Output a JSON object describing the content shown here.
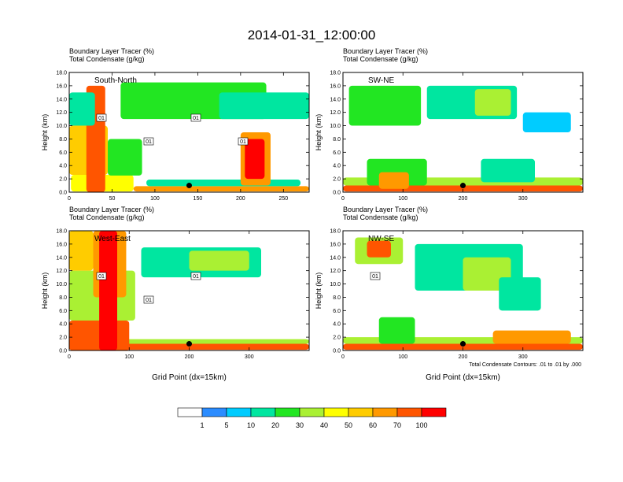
{
  "figure_title": "2014-01-31_12:00:00",
  "chart_data": [
    {
      "type": "heatmap",
      "label": "South-North",
      "subtitle_lines": [
        "Boundary Layer Tracer    (%)",
        "Total Condensate    (g/kg)"
      ],
      "ylabel": "Height (km)",
      "xlabel": "",
      "xlim": [
        0,
        280
      ],
      "ylim": [
        0,
        18
      ],
      "xticks": [
        0,
        50,
        100,
        150,
        200,
        250
      ],
      "yticks": [
        0,
        2,
        4,
        6,
        8,
        10,
        12,
        14,
        16,
        18
      ],
      "ytick_labels": [
        "0.0",
        "2.0",
        "4.0",
        "6.0",
        "8.0",
        "10.0",
        "12.0",
        "14.0",
        "16.0",
        "18.0"
      ],
      "marker": {
        "x": 140,
        "y": 1.0
      },
      "contour_labels": [
        "01",
        "01",
        "01",
        "01"
      ],
      "tracer_regions": [
        {
          "x": [
            2,
            75
          ],
          "y": [
            0.1,
            2.6
          ],
          "level": 6
        },
        {
          "x": [
            75,
            280
          ],
          "y": [
            0.1,
            0.9
          ],
          "level": 8
        },
        {
          "x": [
            90,
            270
          ],
          "y": [
            0.9,
            1.9
          ],
          "level": 3
        },
        {
          "x": [
            0,
            45
          ],
          "y": [
            2.6,
            10
          ],
          "level": 7
        },
        {
          "x": [
            20,
            42
          ],
          "y": [
            0,
            16
          ],
          "level": 9
        },
        {
          "x": [
            0,
            30
          ],
          "y": [
            10,
            15
          ],
          "level": 3
        },
        {
          "x": [
            45,
            85
          ],
          "y": [
            2.5,
            8
          ],
          "level": 4
        },
        {
          "x": [
            60,
            230
          ],
          "y": [
            11,
            16.5
          ],
          "level": 4
        },
        {
          "x": [
            175,
            280
          ],
          "y": [
            11,
            15
          ],
          "level": 3
        },
        {
          "x": [
            200,
            235
          ],
          "y": [
            1,
            9
          ],
          "level": 8
        },
        {
          "x": [
            205,
            228
          ],
          "y": [
            2,
            8
          ],
          "level": 10
        }
      ]
    },
    {
      "type": "heatmap",
      "label": "SW-NE",
      "subtitle_lines": [
        "Boundary Layer Tracer    (%)",
        "Total Condensate    (g/kg)"
      ],
      "ylabel": "Height (km)",
      "xlabel": "",
      "xlim": [
        0,
        400
      ],
      "ylim": [
        0,
        18
      ],
      "xticks": [
        0,
        100,
        200,
        300
      ],
      "yticks": [
        0,
        2,
        4,
        6,
        8,
        10,
        12,
        14,
        16,
        18
      ],
      "ytick_labels": [
        "0.0",
        "2.0",
        "4.0",
        "6.0",
        "8.0",
        "10.0",
        "12.0",
        "14.0",
        "16.0",
        "18.0"
      ],
      "marker": {
        "x": 200,
        "y": 1.0
      },
      "contour_labels": [],
      "tracer_regions": [
        {
          "x": [
            0,
            400
          ],
          "y": [
            0.1,
            1.0
          ],
          "level": 9
        },
        {
          "x": [
            0,
            400
          ],
          "y": [
            1.0,
            2.2
          ],
          "level": 5
        },
        {
          "x": [
            40,
            140
          ],
          "y": [
            1,
            5
          ],
          "level": 4
        },
        {
          "x": [
            60,
            110
          ],
          "y": [
            0.5,
            3
          ],
          "level": 8
        },
        {
          "x": [
            230,
            320
          ],
          "y": [
            1.5,
            5
          ],
          "level": 3
        },
        {
          "x": [
            10,
            130
          ],
          "y": [
            10,
            16
          ],
          "level": 4
        },
        {
          "x": [
            140,
            290
          ],
          "y": [
            11,
            16
          ],
          "level": 3
        },
        {
          "x": [
            220,
            280
          ],
          "y": [
            11.5,
            15.5
          ],
          "level": 5
        },
        {
          "x": [
            300,
            380
          ],
          "y": [
            9,
            12
          ],
          "level": 2
        }
      ]
    },
    {
      "type": "heatmap",
      "label": "West-East",
      "subtitle_lines": [
        "Boundary Layer Tracer    (%)",
        "Total Condensate    (g/kg)"
      ],
      "ylabel": "Height (km)",
      "xlabel": "Grid Point (dx=15km)",
      "xlim": [
        0,
        400
      ],
      "ylim": [
        0,
        18
      ],
      "xticks": [
        0,
        100,
        200,
        300
      ],
      "yticks": [
        0,
        2,
        4,
        6,
        8,
        10,
        12,
        14,
        16,
        18
      ],
      "ytick_labels": [
        "0.0",
        "2.0",
        "4.0",
        "6.0",
        "8.0",
        "10.0",
        "12.0",
        "14.0",
        "16.0",
        "18.0"
      ],
      "marker": {
        "x": 200,
        "y": 1.0
      },
      "contour_labels": [
        "01",
        "01",
        "01"
      ],
      "tracer_regions": [
        {
          "x": [
            0,
            400
          ],
          "y": [
            0.1,
            1.0
          ],
          "level": 9
        },
        {
          "x": [
            0,
            400
          ],
          "y": [
            1.0,
            1.7
          ],
          "level": 5
        },
        {
          "x": [
            0,
            100
          ],
          "y": [
            0,
            4.5
          ],
          "level": 9
        },
        {
          "x": [
            0,
            110
          ],
          "y": [
            4.5,
            12
          ],
          "level": 5
        },
        {
          "x": [
            0,
            40
          ],
          "y": [
            12,
            18
          ],
          "level": 7
        },
        {
          "x": [
            40,
            95
          ],
          "y": [
            8,
            18
          ],
          "level": 8
        },
        {
          "x": [
            50,
            80
          ],
          "y": [
            0,
            18
          ],
          "level": 10
        },
        {
          "x": [
            120,
            320
          ],
          "y": [
            11,
            15.5
          ],
          "level": 3
        },
        {
          "x": [
            200,
            300
          ],
          "y": [
            12,
            15
          ],
          "level": 5
        }
      ]
    },
    {
      "type": "heatmap",
      "label": "NW-SE",
      "subtitle_lines": [
        "Boundary Layer Tracer    (%)",
        "Total Condensate    (g/kg)"
      ],
      "ylabel": "Height (km)",
      "xlabel": "Grid Point (dx=15km)",
      "xlim": [
        0,
        400
      ],
      "ylim": [
        0,
        18
      ],
      "xticks": [
        0,
        100,
        200,
        300
      ],
      "yticks": [
        0,
        2,
        4,
        6,
        8,
        10,
        12,
        14,
        16,
        18
      ],
      "ytick_labels": [
        "0.0",
        "2.0",
        "4.0",
        "6.0",
        "8.0",
        "10.0",
        "12.0",
        "14.0",
        "16.0",
        "18.0"
      ],
      "marker": {
        "x": 200,
        "y": 1.0
      },
      "contour_labels": [
        "01"
      ],
      "footnote": "Total Condensate Contours: .01 to .01 by .000",
      "tracer_regions": [
        {
          "x": [
            0,
            400
          ],
          "y": [
            0.1,
            1.0
          ],
          "level": 9
        },
        {
          "x": [
            0,
            400
          ],
          "y": [
            1.0,
            2.0
          ],
          "level": 5
        },
        {
          "x": [
            250,
            380
          ],
          "y": [
            1,
            3
          ],
          "level": 8
        },
        {
          "x": [
            60,
            120
          ],
          "y": [
            1,
            5
          ],
          "level": 4
        },
        {
          "x": [
            20,
            100
          ],
          "y": [
            13,
            17
          ],
          "level": 5
        },
        {
          "x": [
            40,
            80
          ],
          "y": [
            14,
            16.5
          ],
          "level": 9
        },
        {
          "x": [
            120,
            300
          ],
          "y": [
            9,
            16
          ],
          "level": 3
        },
        {
          "x": [
            200,
            280
          ],
          "y": [
            9,
            14
          ],
          "level": 5
        },
        {
          "x": [
            260,
            330
          ],
          "y": [
            6,
            11
          ],
          "level": 3
        }
      ]
    }
  ],
  "colorbar": {
    "labels": [
      "1",
      "5",
      "10",
      "20",
      "30",
      "40",
      "50",
      "60",
      "70",
      "100"
    ],
    "colors": [
      "#ffffff",
      "#2b8cff",
      "#00ccff",
      "#00e6a0",
      "#22e622",
      "#aaf033",
      "#ffff00",
      "#ffcc00",
      "#ff9900",
      "#ff5500",
      "#ff0000"
    ]
  }
}
